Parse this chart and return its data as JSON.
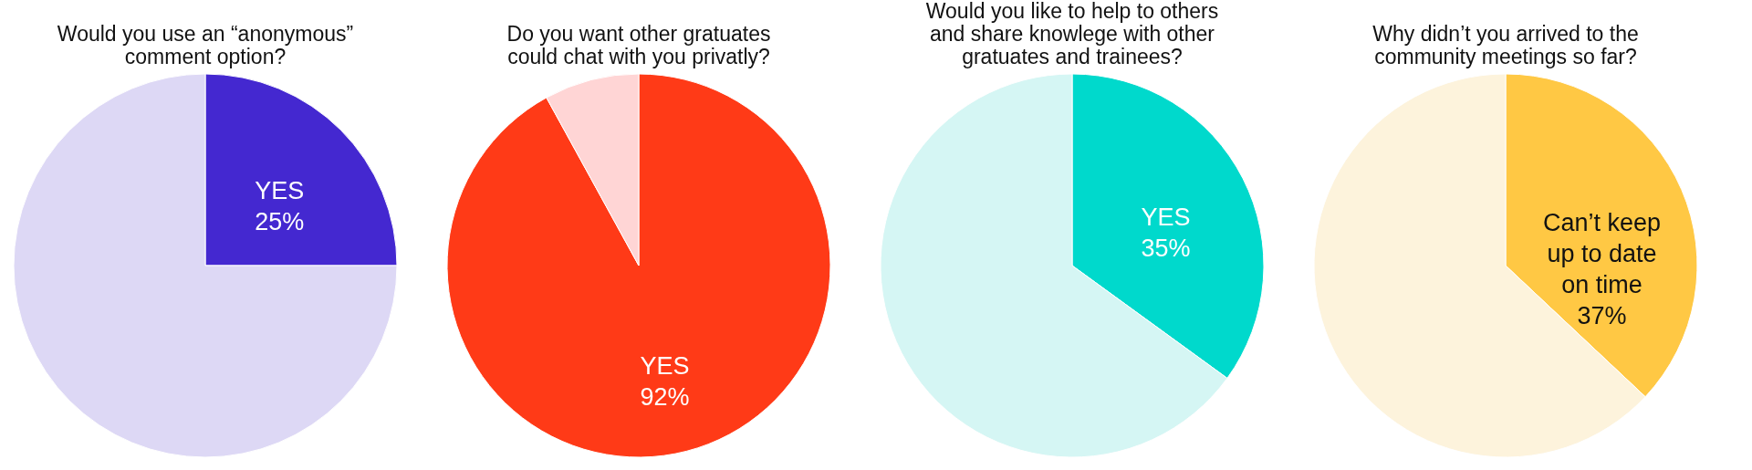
{
  "chart_data": [
    {
      "type": "pie",
      "title": "Would you use an “anonymous” comment option?",
      "categories": [
        "YES",
        null
      ],
      "values": [
        25,
        75
      ],
      "colors": [
        "#4428d0",
        "#ddd8f5"
      ],
      "value_labels": [
        "25%",
        null
      ]
    },
    {
      "type": "pie",
      "title": "Do you want other gratuates could chat with you privatly?",
      "categories": [
        "YES",
        null
      ],
      "values": [
        92,
        8
      ],
      "colors": [
        "#ff3a17",
        "#ffd5d5"
      ],
      "value_labels": [
        "92%",
        null
      ]
    },
    {
      "type": "pie",
      "title": "Would you like to help to others and share knowlege with other gratuates and trainees?",
      "categories": [
        "YES",
        null
      ],
      "values": [
        35,
        65
      ],
      "colors": [
        "#00d9cc",
        "#d5f6f4"
      ],
      "value_labels": [
        "35%",
        null
      ]
    },
    {
      "type": "pie",
      "title": "Why didn’t you arrived to the community meetings so far?",
      "categories": [
        "Can’t keep up to date on time",
        null
      ],
      "values": [
        37,
        63
      ],
      "colors": [
        "#ffc844",
        "#fdf3dc"
      ],
      "value_labels": [
        "37%",
        null
      ]
    }
  ]
}
